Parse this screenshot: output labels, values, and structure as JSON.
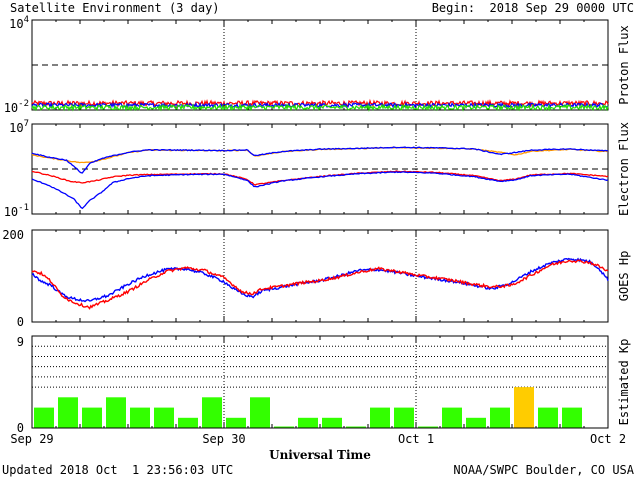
{
  "header": {
    "title": "Satellite Environment (3 day)",
    "begin": "Begin:  2018 Sep 29 0000 UTC"
  },
  "footer": {
    "updated": "Updated 2018 Oct  1 23:56:03 UTC",
    "credit": "NOAA/SWPC Boulder, CO USA"
  },
  "x_axis": {
    "title": "Universal Time",
    "ticks": [
      "Sep 29",
      "Sep 30",
      "Oct 1",
      "Oct 2"
    ]
  },
  "colors": {
    "red": "#ff0000",
    "blue": "#0000ff",
    "green": "#22e000",
    "orange": "#ff9900",
    "kp_normal": "#33ff00",
    "kp_elevated": "#ffcc00"
  },
  "chart_data": [
    {
      "type": "line",
      "ylabel": "Proton Flux",
      "yscale": "log",
      "ylim": [
        0.01,
        10000
      ],
      "ytick_labels": [
        {
          "base": "10",
          "exp": "4"
        },
        {
          "base": "10",
          "exp": "-2"
        }
      ],
      "threshold": 10,
      "x_unit": "days since 2018-09-29 00:00 UTC",
      "xlim": [
        0,
        3
      ],
      "series": [
        {
          "color": "red",
          "base": 0.028,
          "jitter": 0.32
        },
        {
          "color": "blue",
          "base": 0.021,
          "jitter": 0.25
        },
        {
          "color": "green",
          "base": 0.015,
          "jitter": 0.3
        }
      ]
    },
    {
      "type": "line",
      "ylabel": "Electron Flux",
      "yscale": "log",
      "ylim": [
        0.1,
        10000000
      ],
      "ytick_labels": [
        {
          "base": "10",
          "exp": "7"
        },
        {
          "base": "10",
          "exp": "-1"
        }
      ],
      "threshold": 1000,
      "xlim": [
        0,
        3
      ],
      "series": [
        {
          "color": "orange",
          "x": [
            0,
            0.1,
            0.2,
            0.26,
            0.33,
            0.42,
            0.5,
            0.6,
            0.8,
            1.0,
            1.12,
            1.16,
            1.3,
            1.5,
            1.7,
            1.9,
            2.1,
            2.3,
            2.44,
            2.52,
            2.6,
            2.8,
            3.0
          ],
          "y": [
            18000,
            9000,
            5000,
            3600,
            5000,
            12000,
            28000,
            48000,
            45000,
            42000,
            48000,
            14000,
            34000,
            55000,
            65000,
            80000,
            72000,
            60000,
            30000,
            18000,
            38000,
            55000,
            35000
          ]
        },
        {
          "color": "red",
          "x": [
            0,
            0.1,
            0.2,
            0.26,
            0.33,
            0.42,
            0.5,
            0.6,
            0.8,
            1.0,
            1.12,
            1.16,
            1.3,
            1.5,
            1.7,
            1.9,
            2.1,
            2.3,
            2.44,
            2.52,
            2.6,
            2.8,
            3.0
          ],
          "y": [
            650,
            250,
            80,
            60,
            90,
            200,
            280,
            320,
            360,
            380,
            120,
            40,
            90,
            220,
            420,
            620,
            500,
            260,
            90,
            130,
            300,
            400,
            220
          ]
        },
        {
          "color": "blue",
          "x": [
            0,
            0.08,
            0.16,
            0.22,
            0.26,
            0.3,
            0.36,
            0.42,
            0.5,
            0.6,
            0.8,
            1.0,
            1.12,
            1.16,
            1.3,
            1.5,
            1.7,
            1.9,
            2.1,
            2.3,
            2.44,
            2.52,
            2.6,
            2.8,
            3.0
          ],
          "y": [
            120,
            40,
            8,
            2,
            0.3,
            1.5,
            8,
            60,
            140,
            250,
            320,
            350,
            100,
            25,
            85,
            200,
            380,
            540,
            430,
            210,
            80,
            110,
            260,
            350,
            100
          ]
        },
        {
          "color": "blue",
          "x": [
            0,
            0.08,
            0.18,
            0.26,
            0.3,
            0.36,
            0.42,
            0.5,
            0.6,
            0.8,
            1.0,
            1.12,
            1.16,
            1.3,
            1.5,
            1.7,
            1.9,
            2.1,
            2.3,
            2.44,
            2.52,
            2.6,
            2.8,
            3.0
          ],
          "y": [
            26000,
            12000,
            6000,
            400,
            3000,
            8000,
            15000,
            30000,
            50000,
            48000,
            44000,
            50000,
            15000,
            36000,
            58000,
            68000,
            85000,
            76000,
            62000,
            20000,
            30000,
            48000,
            60000,
            40000
          ]
        }
      ]
    },
    {
      "type": "line",
      "ylabel": "GOES Hp",
      "ylim": [
        0,
        200
      ],
      "yticks": [
        "200",
        "0"
      ],
      "xlim": [
        0,
        3
      ],
      "series": [
        {
          "color": "blue",
          "x": [
            0,
            0.05,
            0.1,
            0.15,
            0.2,
            0.25,
            0.3,
            0.35,
            0.4,
            0.5,
            0.6,
            0.7,
            0.8,
            0.9,
            1.0,
            1.05,
            1.1,
            1.15,
            1.2,
            1.3,
            1.4,
            1.5,
            1.6,
            1.7,
            1.8,
            1.9,
            2.0,
            2.1,
            2.2,
            2.3,
            2.4,
            2.5,
            2.6,
            2.7,
            2.8,
            2.9,
            2.95,
            3.0
          ],
          "y": [
            105,
            88,
            80,
            62,
            52,
            48,
            45,
            52,
            58,
            82,
            102,
            114,
            116,
            105,
            88,
            72,
            60,
            55,
            68,
            76,
            84,
            90,
            100,
            112,
            114,
            108,
            100,
            94,
            88,
            80,
            72,
            86,
            110,
            128,
            138,
            132,
            118,
            92
          ]
        },
        {
          "color": "red",
          "x": [
            0,
            0.05,
            0.1,
            0.15,
            0.2,
            0.25,
            0.3,
            0.35,
            0.4,
            0.5,
            0.6,
            0.7,
            0.8,
            0.9,
            1.0,
            1.05,
            1.1,
            1.15,
            1.2,
            1.3,
            1.4,
            1.5,
            1.6,
            1.7,
            1.8,
            1.9,
            2.0,
            2.1,
            2.2,
            2.3,
            2.4,
            2.5,
            2.6,
            2.7,
            2.8,
            2.9,
            2.95,
            3.0
          ],
          "y": [
            112,
            105,
            88,
            60,
            46,
            38,
            32,
            40,
            48,
            66,
            90,
            110,
            118,
            112,
            96,
            80,
            64,
            62,
            72,
            78,
            85,
            90,
            98,
            108,
            116,
            110,
            102,
            96,
            90,
            82,
            76,
            80,
            102,
            124,
            134,
            130,
            122,
            110
          ]
        }
      ]
    },
    {
      "type": "bar",
      "ylabel": "Estimated Kp",
      "ylim": [
        0,
        9
      ],
      "yticks": [
        "9",
        "0"
      ],
      "gridlines": [
        4,
        5,
        6,
        7,
        8,
        9
      ],
      "bin_hours": 3,
      "values": [
        2,
        3,
        2,
        3,
        2,
        2,
        1,
        3,
        1,
        3,
        0.15,
        1,
        1,
        0.15,
        2,
        2,
        0.15,
        2,
        1,
        2,
        4,
        2,
        2,
        0
      ],
      "elevated_from": 4
    }
  ]
}
